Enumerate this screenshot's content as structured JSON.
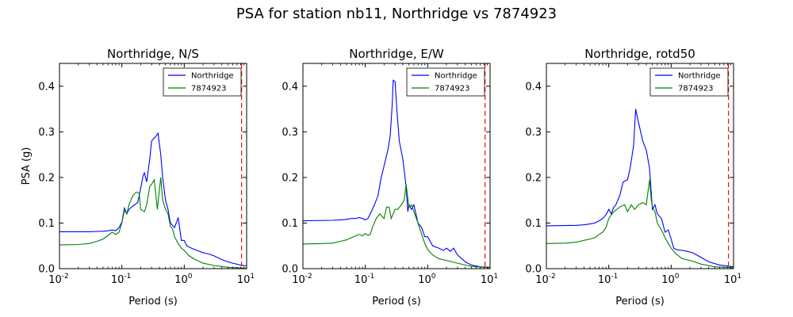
{
  "figure": {
    "title": "PSA for station nb11, Northridge vs 7874923"
  },
  "chart_data": [
    {
      "type": "line",
      "title": "Northridge, N/S",
      "xlabel": "Period (s)",
      "ylabel": "PSA (g)",
      "xscale": "log",
      "xlim": [
        0.01,
        10
      ],
      "ylim": [
        0,
        0.45
      ],
      "xticks": [
        {
          "label": "10",
          "exp": "-2"
        },
        {
          "label": "10",
          "exp": "-1"
        },
        {
          "label": "10",
          "exp": "0"
        },
        {
          "label": "10",
          "exp": "1"
        }
      ],
      "yticks": [
        "0.0",
        "0.1",
        "0.2",
        "0.3",
        "0.4"
      ],
      "legend": "top-right",
      "vline": {
        "x": 8.3,
        "color": "#ff0000",
        "style": "dashed"
      },
      "series": [
        {
          "name": "Northridge",
          "color": "#0000ff",
          "points": [
            [
              0.01,
              0.081
            ],
            [
              0.03,
              0.081
            ],
            [
              0.05,
              0.082
            ],
            [
              0.06,
              0.083
            ],
            [
              0.07,
              0.085
            ],
            [
              0.08,
              0.083
            ],
            [
              0.09,
              0.09
            ],
            [
              0.1,
              0.102
            ],
            [
              0.11,
              0.133
            ],
            [
              0.12,
              0.12
            ],
            [
              0.13,
              0.13
            ],
            [
              0.15,
              0.137
            ],
            [
              0.18,
              0.145
            ],
            [
              0.2,
              0.175
            ],
            [
              0.22,
              0.205
            ],
            [
              0.23,
              0.21
            ],
            [
              0.25,
              0.19
            ],
            [
              0.28,
              0.24
            ],
            [
              0.3,
              0.28
            ],
            [
              0.35,
              0.29
            ],
            [
              0.38,
              0.297
            ],
            [
              0.42,
              0.25
            ],
            [
              0.45,
              0.2
            ],
            [
              0.5,
              0.15
            ],
            [
              0.55,
              0.13
            ],
            [
              0.6,
              0.1
            ],
            [
              0.7,
              0.09
            ],
            [
              0.8,
              0.112
            ],
            [
              0.9,
              0.062
            ],
            [
              1.0,
              0.062
            ],
            [
              1.1,
              0.05
            ],
            [
              1.3,
              0.045
            ],
            [
              1.6,
              0.04
            ],
            [
              2.0,
              0.035
            ],
            [
              2.5,
              0.032
            ],
            [
              3.0,
              0.028
            ],
            [
              4.0,
              0.02
            ],
            [
              5.0,
              0.015
            ],
            [
              6.0,
              0.012
            ],
            [
              8.0,
              0.008
            ],
            [
              10.0,
              0.006
            ]
          ]
        },
        {
          "name": "7874923",
          "color": "#008000",
          "points": [
            [
              0.01,
              0.052
            ],
            [
              0.02,
              0.053
            ],
            [
              0.03,
              0.055
            ],
            [
              0.04,
              0.06
            ],
            [
              0.05,
              0.065
            ],
            [
              0.06,
              0.073
            ],
            [
              0.07,
              0.08
            ],
            [
              0.08,
              0.075
            ],
            [
              0.09,
              0.08
            ],
            [
              0.1,
              0.1
            ],
            [
              0.11,
              0.128
            ],
            [
              0.12,
              0.12
            ],
            [
              0.13,
              0.14
            ],
            [
              0.15,
              0.16
            ],
            [
              0.17,
              0.168
            ],
            [
              0.19,
              0.165
            ],
            [
              0.2,
              0.13
            ],
            [
              0.23,
              0.125
            ],
            [
              0.25,
              0.14
            ],
            [
              0.28,
              0.18
            ],
            [
              0.3,
              0.185
            ],
            [
              0.33,
              0.195
            ],
            [
              0.37,
              0.13
            ],
            [
              0.42,
              0.2
            ],
            [
              0.45,
              0.15
            ],
            [
              0.5,
              0.13
            ],
            [
              0.55,
              0.12
            ],
            [
              0.6,
              0.093
            ],
            [
              0.65,
              0.087
            ],
            [
              0.7,
              0.07
            ],
            [
              0.8,
              0.055
            ],
            [
              0.9,
              0.045
            ],
            [
              1.0,
              0.04
            ],
            [
              1.2,
              0.028
            ],
            [
              1.5,
              0.02
            ],
            [
              2.0,
              0.012
            ],
            [
              3.0,
              0.007
            ],
            [
              5.0,
              0.003
            ],
            [
              10.0,
              0.001
            ]
          ]
        }
      ]
    },
    {
      "type": "line",
      "title": "Northridge, E/W",
      "xlabel": "Period (s)",
      "ylabel": "",
      "xscale": "log",
      "xlim": [
        0.01,
        10
      ],
      "ylim": [
        0,
        0.45
      ],
      "xticks": [
        {
          "label": "10",
          "exp": "-2"
        },
        {
          "label": "10",
          "exp": "-1"
        },
        {
          "label": "10",
          "exp": "0"
        },
        {
          "label": "10",
          "exp": "1"
        }
      ],
      "yticks": [
        "0.0",
        "0.1",
        "0.2",
        "0.3",
        "0.4"
      ],
      "legend": "top-right",
      "vline": {
        "x": 8.3,
        "color": "#ff0000",
        "style": "dashed"
      },
      "series": [
        {
          "name": "Northridge",
          "color": "#0000ff",
          "points": [
            [
              0.01,
              0.105
            ],
            [
              0.03,
              0.106
            ],
            [
              0.04,
              0.107
            ],
            [
              0.05,
              0.108
            ],
            [
              0.06,
              0.11
            ],
            [
              0.07,
              0.11
            ],
            [
              0.08,
              0.112
            ],
            [
              0.09,
              0.11
            ],
            [
              0.1,
              0.107
            ],
            [
              0.11,
              0.11
            ],
            [
              0.12,
              0.12
            ],
            [
              0.14,
              0.14
            ],
            [
              0.16,
              0.16
            ],
            [
              0.18,
              0.2
            ],
            [
              0.2,
              0.225
            ],
            [
              0.23,
              0.26
            ],
            [
              0.25,
              0.29
            ],
            [
              0.27,
              0.36
            ],
            [
              0.28,
              0.413
            ],
            [
              0.3,
              0.41
            ],
            [
              0.32,
              0.35
            ],
            [
              0.35,
              0.28
            ],
            [
              0.4,
              0.24
            ],
            [
              0.45,
              0.18
            ],
            [
              0.48,
              0.125
            ],
            [
              0.5,
              0.14
            ],
            [
              0.55,
              0.13
            ],
            [
              0.6,
              0.14
            ],
            [
              0.7,
              0.1
            ],
            [
              0.8,
              0.09
            ],
            [
              0.9,
              0.07
            ],
            [
              1.0,
              0.07
            ],
            [
              1.2,
              0.05
            ],
            [
              1.5,
              0.045
            ],
            [
              1.8,
              0.04
            ],
            [
              2.0,
              0.045
            ],
            [
              2.3,
              0.038
            ],
            [
              2.6,
              0.045
            ],
            [
              3.0,
              0.03
            ],
            [
              4.0,
              0.015
            ],
            [
              5.0,
              0.008
            ],
            [
              7.0,
              0.004
            ],
            [
              10.0,
              0.003
            ]
          ]
        },
        {
          "name": "7874923",
          "color": "#008000",
          "points": [
            [
              0.01,
              0.054
            ],
            [
              0.02,
              0.055
            ],
            [
              0.03,
              0.056
            ],
            [
              0.04,
              0.06
            ],
            [
              0.05,
              0.063
            ],
            [
              0.06,
              0.068
            ],
            [
              0.07,
              0.072
            ],
            [
              0.08,
              0.075
            ],
            [
              0.09,
              0.072
            ],
            [
              0.1,
              0.077
            ],
            [
              0.11,
              0.073
            ],
            [
              0.12,
              0.075
            ],
            [
              0.13,
              0.09
            ],
            [
              0.15,
              0.11
            ],
            [
              0.17,
              0.12
            ],
            [
              0.2,
              0.11
            ],
            [
              0.22,
              0.135
            ],
            [
              0.24,
              0.135
            ],
            [
              0.26,
              0.11
            ],
            [
              0.28,
              0.12
            ],
            [
              0.3,
              0.13
            ],
            [
              0.33,
              0.13
            ],
            [
              0.38,
              0.14
            ],
            [
              0.42,
              0.15
            ],
            [
              0.45,
              0.185
            ],
            [
              0.5,
              0.135
            ],
            [
              0.55,
              0.14
            ],
            [
              0.6,
              0.125
            ],
            [
              0.7,
              0.1
            ],
            [
              0.8,
              0.075
            ],
            [
              0.9,
              0.055
            ],
            [
              1.0,
              0.042
            ],
            [
              1.2,
              0.03
            ],
            [
              1.5,
              0.022
            ],
            [
              2.0,
              0.018
            ],
            [
              3.0,
              0.012
            ],
            [
              5.0,
              0.005
            ],
            [
              10.0,
              0.002
            ]
          ]
        }
      ]
    },
    {
      "type": "line",
      "title": "Northridge, rotd50",
      "xlabel": "Period (s)",
      "ylabel": "",
      "xscale": "log",
      "xlim": [
        0.01,
        10
      ],
      "ylim": [
        0,
        0.45
      ],
      "xticks": [
        {
          "label": "10",
          "exp": "-2"
        },
        {
          "label": "10",
          "exp": "-1"
        },
        {
          "label": "10",
          "exp": "0"
        },
        {
          "label": "10",
          "exp": "1"
        }
      ],
      "yticks": [
        "0.0",
        "0.1",
        "0.2",
        "0.3",
        "0.4"
      ],
      "legend": "top-right",
      "vline": {
        "x": 8.3,
        "color": "#ff0000",
        "style": "dashed"
      },
      "series": [
        {
          "name": "Northridge",
          "color": "#0000ff",
          "points": [
            [
              0.01,
              0.094
            ],
            [
              0.03,
              0.095
            ],
            [
              0.04,
              0.096
            ],
            [
              0.05,
              0.098
            ],
            [
              0.06,
              0.1
            ],
            [
              0.07,
              0.105
            ],
            [
              0.08,
              0.11
            ],
            [
              0.09,
              0.118
            ],
            [
              0.1,
              0.13
            ],
            [
              0.11,
              0.12
            ],
            [
              0.12,
              0.135
            ],
            [
              0.13,
              0.14
            ],
            [
              0.15,
              0.16
            ],
            [
              0.17,
              0.19
            ],
            [
              0.2,
              0.195
            ],
            [
              0.22,
              0.22
            ],
            [
              0.25,
              0.27
            ],
            [
              0.27,
              0.35
            ],
            [
              0.3,
              0.32
            ],
            [
              0.35,
              0.28
            ],
            [
              0.4,
              0.26
            ],
            [
              0.45,
              0.22
            ],
            [
              0.5,
              0.13
            ],
            [
              0.55,
              0.14
            ],
            [
              0.6,
              0.12
            ],
            [
              0.65,
              0.115
            ],
            [
              0.7,
              0.11
            ],
            [
              0.8,
              0.08
            ],
            [
              0.9,
              0.085
            ],
            [
              1.0,
              0.065
            ],
            [
              1.1,
              0.045
            ],
            [
              1.2,
              0.042
            ],
            [
              1.5,
              0.04
            ],
            [
              1.8,
              0.038
            ],
            [
              2.2,
              0.035
            ],
            [
              3.0,
              0.025
            ],
            [
              4.0,
              0.015
            ],
            [
              6.0,
              0.008
            ],
            [
              10.0,
              0.004
            ]
          ]
        },
        {
          "name": "7874923",
          "color": "#008000",
          "points": [
            [
              0.01,
              0.055
            ],
            [
              0.02,
              0.056
            ],
            [
              0.03,
              0.058
            ],
            [
              0.04,
              0.062
            ],
            [
              0.05,
              0.065
            ],
            [
              0.06,
              0.068
            ],
            [
              0.07,
              0.075
            ],
            [
              0.08,
              0.08
            ],
            [
              0.09,
              0.09
            ],
            [
              0.1,
              0.11
            ],
            [
              0.12,
              0.125
            ],
            [
              0.15,
              0.135
            ],
            [
              0.18,
              0.14
            ],
            [
              0.2,
              0.125
            ],
            [
              0.23,
              0.14
            ],
            [
              0.26,
              0.13
            ],
            [
              0.3,
              0.14
            ],
            [
              0.35,
              0.145
            ],
            [
              0.4,
              0.14
            ],
            [
              0.45,
              0.195
            ],
            [
              0.48,
              0.15
            ],
            [
              0.5,
              0.135
            ],
            [
              0.55,
              0.125
            ],
            [
              0.6,
              0.1
            ],
            [
              0.7,
              0.085
            ],
            [
              0.8,
              0.068
            ],
            [
              0.9,
              0.055
            ],
            [
              1.0,
              0.045
            ],
            [
              1.2,
              0.032
            ],
            [
              1.5,
              0.022
            ],
            [
              2.0,
              0.018
            ],
            [
              3.0,
              0.01
            ],
            [
              5.0,
              0.004
            ],
            [
              10.0,
              0.002
            ]
          ]
        }
      ]
    }
  ]
}
